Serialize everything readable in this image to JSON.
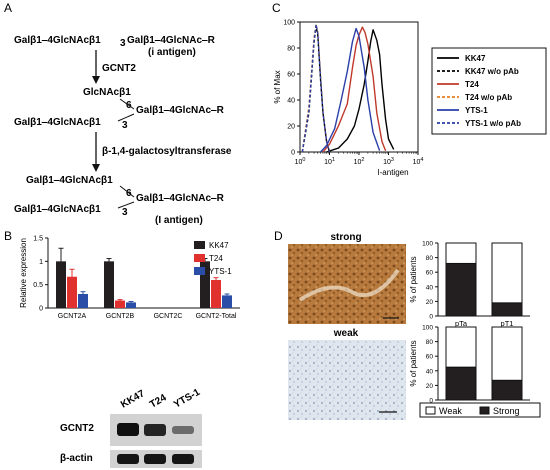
{
  "panel_a": {
    "label": "A",
    "row1_left": "Galβ1‒4GlcNAcβ1",
    "row1_sub": "3",
    "row1_right": "Galβ1‒4GlcNAc‒R",
    "row1_note": "(i antigen)",
    "enzyme1": "GCNT2",
    "row2_top": "GlcNAcβ1",
    "row2_sub": "6",
    "row2_right": "Galβ1‒4GlcNAc‒R",
    "row2_left": "Galβ1‒4GlcNAcβ1",
    "row2_sub2": "3",
    "enzyme2": "β-1,4-galactosyltransferase",
    "row3_top": "Galβ1‒4GlcNAcβ1",
    "row3_sub": "6",
    "row3_right": "Galβ1‒4GlcNAc‒R",
    "row3_left": "Galβ1‒4GlcNAcβ1",
    "row3_sub2": "3",
    "row3_note": "(I antigen)"
  },
  "panel_b": {
    "label": "B",
    "blot": {
      "lanes": [
        "KK47",
        "T24",
        "YTS-1"
      ],
      "rows": [
        "GCNT2",
        "β-actin"
      ]
    }
  },
  "panel_c": {
    "label": "C"
  },
  "panel_d": {
    "label": "D",
    "image_titles": [
      "strong",
      "weak"
    ]
  },
  "chart_data": [
    {
      "id": "panel-b-bar",
      "type": "bar",
      "categories": [
        "GCNT2A",
        "GCNT2B",
        "GCNT2C",
        "GCNT2-Total"
      ],
      "series": [
        {
          "name": "KK47",
          "color": "#231f20",
          "values": [
            1.0,
            1.0,
            0.0,
            1.0
          ],
          "errors": [
            0.28,
            0.06,
            0.0,
            0.06
          ]
        },
        {
          "name": "T24",
          "color": "#e0312f",
          "values": [
            0.67,
            0.16,
            0.0,
            0.6
          ],
          "errors": [
            0.16,
            0.02,
            0.0,
            0.05
          ]
        },
        {
          "name": "YTS-1",
          "color": "#2a4ea8",
          "values": [
            0.3,
            0.12,
            0.0,
            0.27
          ],
          "errors": [
            0.05,
            0.02,
            0.0,
            0.03
          ]
        }
      ],
      "ylabel": "Relative expression",
      "ylim": [
        0,
        1.5
      ],
      "yticks": [
        "0",
        "0.5",
        "1",
        "1.5"
      ],
      "legend": "top-right"
    },
    {
      "id": "panel-c-flow",
      "type": "line",
      "xlabel": "I-antigen",
      "ylabel": "% of Max",
      "xscale": "log",
      "xlim": [
        1,
        10000
      ],
      "ylim": [
        0,
        100
      ],
      "xticks": [
        "10^0",
        "10^1",
        "10^2",
        "10^3",
        "10^4"
      ],
      "yticks": [
        "0",
        "20",
        "40",
        "60",
        "80",
        "100"
      ],
      "legend": "right",
      "series": [
        {
          "name": "KK47",
          "color": "#000000",
          "dash": "solid",
          "x": [
            8,
            20,
            40,
            70,
            100,
            150,
            200,
            250,
            300,
            400,
            500,
            600,
            800,
            1000,
            1500
          ],
          "y": [
            0,
            3,
            10,
            20,
            33,
            52,
            70,
            85,
            94,
            86,
            75,
            52,
            25,
            10,
            2
          ]
        },
        {
          "name": "KK47 w/o pAb",
          "color": "#000000",
          "dash": "dashed",
          "x": [
            1.2,
            2,
            3,
            3.5,
            4,
            5,
            6,
            8,
            10
          ],
          "y": [
            0,
            30,
            85,
            97,
            90,
            55,
            30,
            8,
            0
          ]
        },
        {
          "name": "T24",
          "color": "#c0392b",
          "dash": "solid",
          "x": [
            6,
            10,
            20,
            40,
            60,
            80,
            100,
            130,
            160,
            200,
            300,
            400,
            600,
            800
          ],
          "y": [
            0,
            6,
            20,
            37,
            65,
            82,
            90,
            96,
            92,
            83,
            58,
            30,
            8,
            1
          ]
        },
        {
          "name": "T24 w/o pAb",
          "color": "#e67e22",
          "dash": "dashed",
          "x": [
            1.2,
            2,
            3,
            3.5,
            4,
            5,
            6,
            8,
            10
          ],
          "y": [
            0,
            35,
            88,
            98,
            92,
            58,
            30,
            8,
            0
          ]
        },
        {
          "name": "YTS-1",
          "color": "#2a3fa8",
          "dash": "solid",
          "x": [
            5,
            8,
            15,
            25,
            40,
            60,
            80,
            100,
            150,
            200,
            300,
            500
          ],
          "y": [
            0,
            5,
            18,
            40,
            62,
            85,
            95,
            89,
            65,
            40,
            15,
            1
          ]
        },
        {
          "name": "YTS-1 w/o pAb",
          "color": "#2a3fa8",
          "dash": "dashed",
          "x": [
            1.2,
            2,
            3,
            3.5,
            4,
            5,
            6,
            8,
            10
          ],
          "y": [
            0,
            32,
            86,
            98,
            91,
            56,
            30,
            8,
            0
          ]
        }
      ]
    },
    {
      "id": "panel-d-stage",
      "type": "bar",
      "stacked": true,
      "categories": [
        "pTa",
        "pT1"
      ],
      "series": [
        {
          "name": "Strong",
          "color": "#231f20",
          "values": [
            72,
            18
          ]
        },
        {
          "name": "Weak",
          "color": "#ffffff",
          "values": [
            28,
            82
          ]
        }
      ],
      "ylabel": "% of patients",
      "ylim": [
        0,
        100
      ],
      "yticks": [
        "0",
        "20",
        "40",
        "60",
        "80",
        "100"
      ]
    },
    {
      "id": "panel-d-grade",
      "type": "bar",
      "stacked": true,
      "categories": [
        "G2",
        "G3"
      ],
      "series": [
        {
          "name": "Strong",
          "color": "#231f20",
          "values": [
            45,
            27
          ]
        },
        {
          "name": "Weak",
          "color": "#ffffff",
          "values": [
            55,
            73
          ]
        }
      ],
      "ylabel": "% of patients",
      "ylim": [
        0,
        100
      ],
      "yticks": [
        "0",
        "20",
        "40",
        "60",
        "80",
        "100"
      ],
      "legend": "bottom"
    }
  ]
}
